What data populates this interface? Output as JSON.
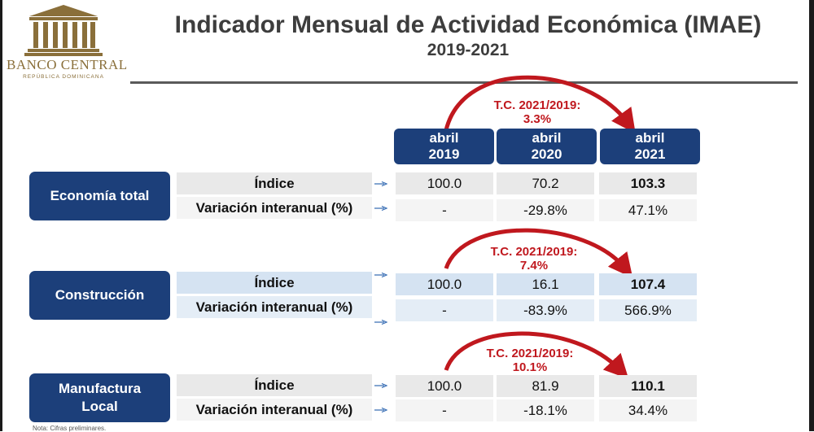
{
  "header": {
    "logo_name": "BANCO CENTRAL",
    "logo_sub": "REPÚBLICA DOMINICANA",
    "title": "Indicador Mensual de Actividad Económica (IMAE)",
    "subtitle": "2019-2021"
  },
  "columns": [
    {
      "month": "abril",
      "year": "2019"
    },
    {
      "month": "abril",
      "year": "2020"
    },
    {
      "month": "abril",
      "year": "2021"
    }
  ],
  "labels": {
    "index": "Índice",
    "variation": "Variación interanual (%)"
  },
  "sectors": [
    {
      "name": "Economía total",
      "tc": [
        "T.C. 2021/2019:",
        "3.3%"
      ],
      "index": [
        "100.0",
        "70.2",
        "103.3"
      ],
      "variation": [
        "-",
        "-29.8%",
        "47.1%"
      ]
    },
    {
      "name": "Construcción",
      "tc": [
        "T.C. 2021/2019:",
        "7.4%"
      ],
      "index": [
        "100.0",
        "16.1",
        "107.4"
      ],
      "variation": [
        "-",
        "-83.9%",
        "566.9%"
      ]
    },
    {
      "name_lines": [
        "Manufactura",
        "Local"
      ],
      "tc": [
        "T.C. 2021/2019:",
        "10.1%"
      ],
      "index": [
        "100.0",
        "81.9",
        "110.1"
      ],
      "variation": [
        "-",
        "-18.1%",
        "34.4%"
      ]
    }
  ],
  "note": "Nota: Cifras preliminares.",
  "colors": {
    "navy": "#1c3f7a",
    "accent_red": "#c0181e",
    "logo_gold": "#8a6f3a",
    "arrow_blue": "#3a6fb5"
  }
}
